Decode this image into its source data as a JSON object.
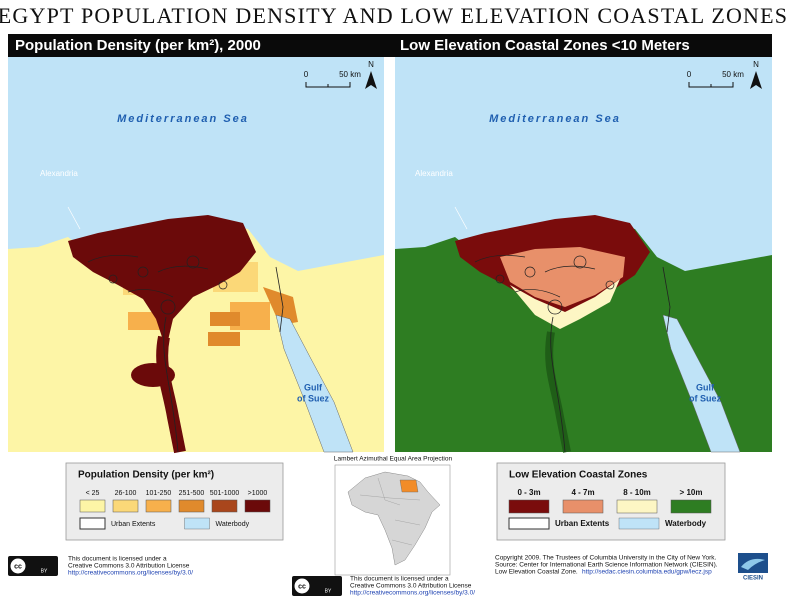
{
  "title": "EGYPT POPULATION DENSITY AND LOW ELEVATION COASTAL ZONES",
  "panels": [
    {
      "header": "Population Density (per km²), 2000",
      "scale": {
        "zero": "0",
        "distance": "50 km",
        "north": "N"
      },
      "sea_label": "Mediterranean Sea",
      "city_label": "Alexandria",
      "gulf_label": [
        "Gulf",
        "of Suez"
      ]
    },
    {
      "header": "Low Elevation Coastal Zones <10 Meters",
      "scale": {
        "zero": "0",
        "distance": "50 km",
        "north": "N"
      },
      "sea_label": "Mediterranean Sea",
      "city_label": "Alexandria",
      "gulf_label": [
        "Gulf",
        "of Suez"
      ]
    }
  ],
  "legends": [
    {
      "title": "Population Density (per km²)",
      "items": [
        {
          "label": "< 25",
          "color": "#fdf5a6"
        },
        {
          "label": "26-100",
          "color": "#fbd878"
        },
        {
          "label": "101-250",
          "color": "#f7b04c"
        },
        {
          "label": "251-500",
          "color": "#e08a2c"
        },
        {
          "label": "501-1000",
          "color": "#a9461c"
        },
        {
          "label": ">1000",
          "color": "#6b0a0a"
        }
      ],
      "extras": [
        {
          "label": "Urban Extents",
          "color": "#ffffff"
        },
        {
          "label": "Waterbody",
          "color": "#bfe3f7"
        }
      ]
    },
    {
      "title": "Low Elevation Coastal Zones",
      "items": [
        {
          "label": "0 - 3m",
          "color": "#7a0c0c"
        },
        {
          "label": "4 - 7m",
          "color": "#e8906a"
        },
        {
          "label": "8 - 10m",
          "color": "#fdf6c4"
        },
        {
          "label": "> 10m",
          "color": "#2e7d22"
        }
      ],
      "extras": [
        {
          "label": "Urban Extents",
          "color": "#ffffff"
        },
        {
          "label": "Waterbody",
          "color": "#bfe3f7"
        }
      ]
    }
  ],
  "inset": {
    "caption": "Lambert Azimuthal Equal Area Projection"
  },
  "licenses": [
    {
      "icon": "cc",
      "badge": "BY",
      "lines": [
        "This document is licensed under a",
        "Creative Commons 3.0 Attribution License"
      ],
      "url": "http://creativecommons.org/licenses/by/3.0/"
    },
    {
      "icon": "cc",
      "badge": "BY",
      "lines": [
        "This document is licensed under a",
        "Creative Commons 3.0 Attribution License"
      ],
      "url": "http://creativecommons.org/licenses/by/3.0/"
    }
  ],
  "credits": {
    "lines": [
      "Copyright 2009. The Trustees of Columbia University in the City of New York.",
      "Source: Center for International Earth Science Information Network (CIESIN).",
      "Low Elevation Coastal Zone."
    ],
    "url": "http://sedac.ciesin.columbia.edu/gpw/lecz.jsp",
    "logo": "CIESIN"
  }
}
